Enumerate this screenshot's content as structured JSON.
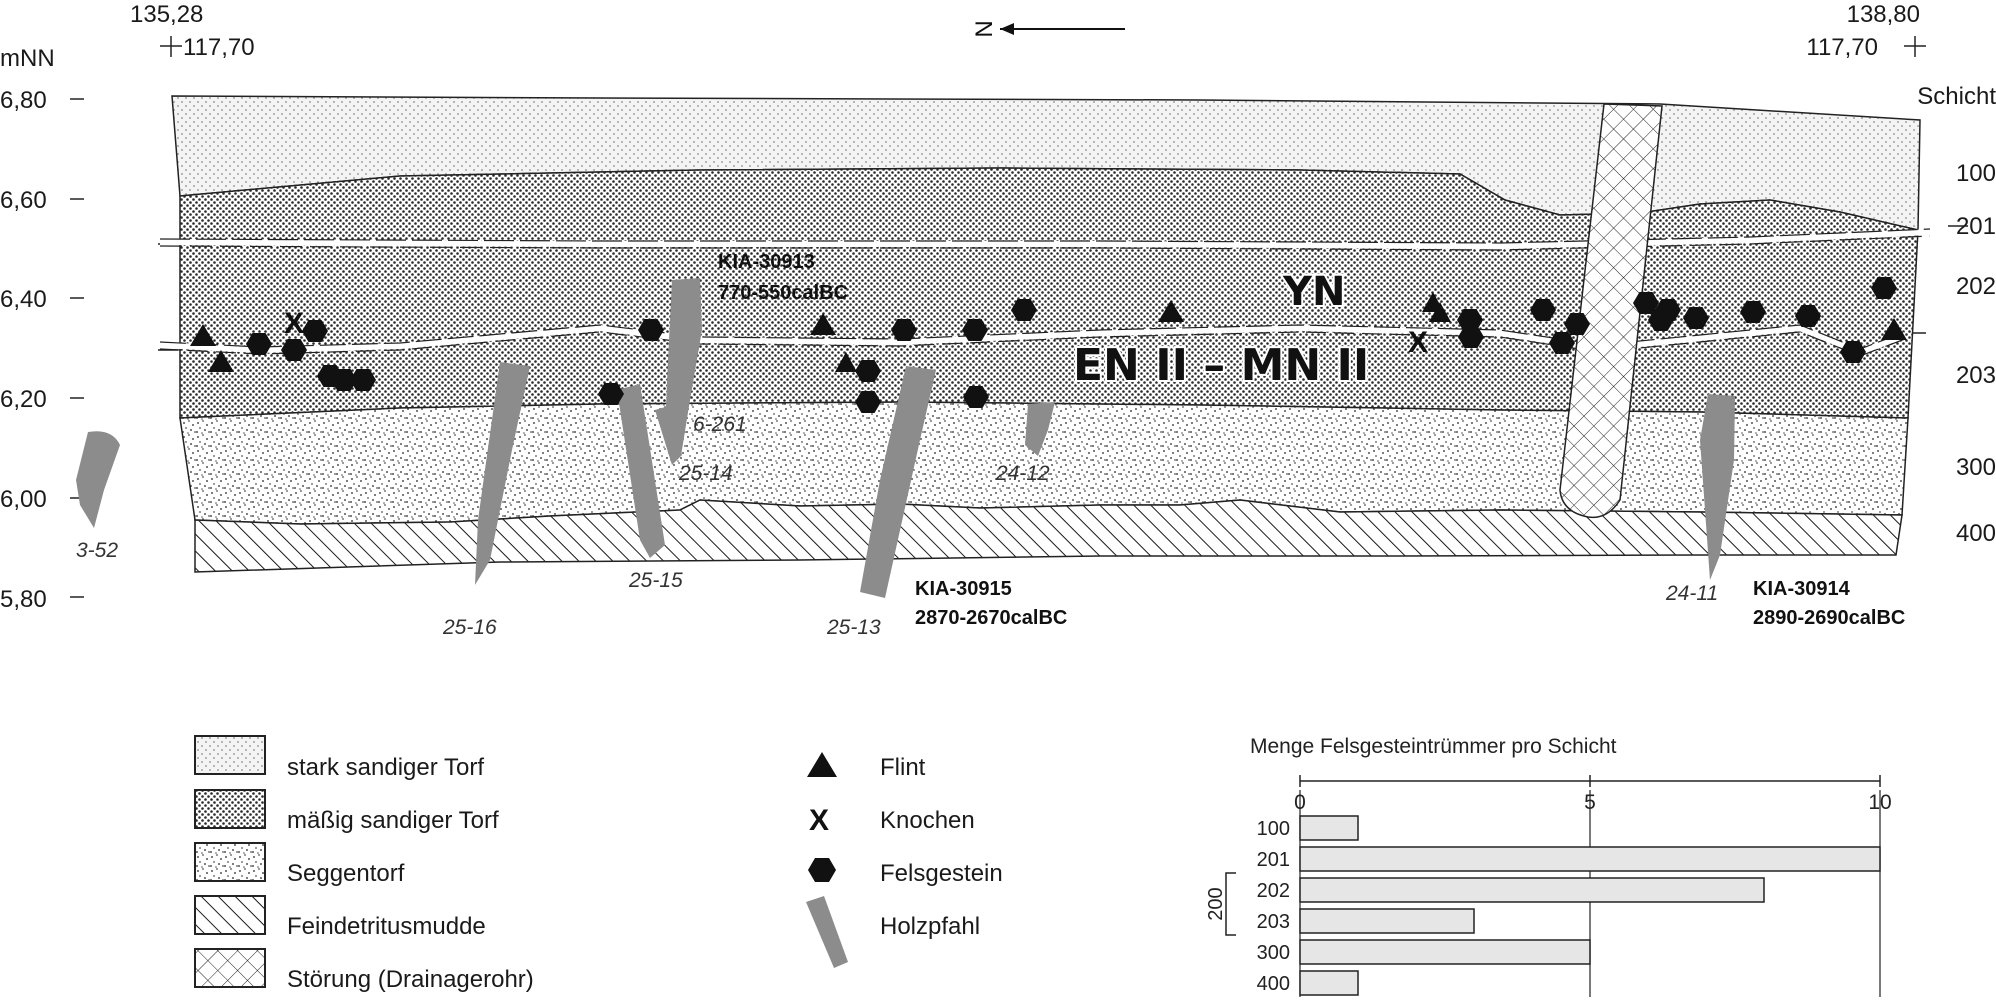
{
  "coords": {
    "left_x": "135,28",
    "left_y": "117,70",
    "right_x": "138,80",
    "right_y": "117,70",
    "north": "N"
  },
  "axis": {
    "unit": "mNN",
    "ticks": [
      "6,80",
      "6,60",
      "6,40",
      "6,20",
      "6,00",
      "5,80"
    ]
  },
  "layers": {
    "header": "Schicht",
    "items": [
      "100",
      "201",
      "202",
      "203",
      "300",
      "400"
    ]
  },
  "periods": {
    "upper": "YN",
    "lower": "EN II – MN II"
  },
  "dates": [
    {
      "lab": "KIA-30913",
      "range": "770-550calBC"
    },
    {
      "lab": "KIA-30915",
      "range": "2870-2670calBC"
    },
    {
      "lab": "KIA-30914",
      "range": "2890-2690calBC"
    }
  ],
  "posts": [
    "3-52",
    "25-16",
    "25-15",
    "6-261",
    "25-14",
    "25-13",
    "24-12",
    "24-11"
  ],
  "legend_fill": [
    {
      "label": "stark sandiger Torf",
      "pattern": "light-dots"
    },
    {
      "label": "mäßig sandiger Torf",
      "pattern": "dense-dots"
    },
    {
      "label": "Seggentorf",
      "pattern": "stipple"
    },
    {
      "label": "Feindetritusmudde",
      "pattern": "hatch"
    },
    {
      "label": "Störung (Drainagerohr)",
      "pattern": "crosshatch"
    }
  ],
  "legend_symbols": [
    {
      "label": "Flint",
      "icon": "triangle-icon"
    },
    {
      "label": "Knochen",
      "icon": "x-mark-icon",
      "glyph": "X"
    },
    {
      "label": "Felsgestein",
      "icon": "hexagon-icon"
    },
    {
      "label": "Holzpfahl",
      "icon": "post-icon"
    }
  ],
  "chart_data": {
    "type": "bar",
    "orientation": "horizontal",
    "title": "Menge Felsgesteintrümmer pro Schicht",
    "categories": [
      "100",
      "201",
      "202",
      "203",
      "300",
      "400"
    ],
    "values": [
      1,
      10,
      8,
      3,
      5,
      1
    ],
    "xlim": [
      0,
      10
    ],
    "xticks": [
      "0",
      "5",
      "10"
    ],
    "group_label": "200",
    "bar_color": "#e6e6e6"
  }
}
